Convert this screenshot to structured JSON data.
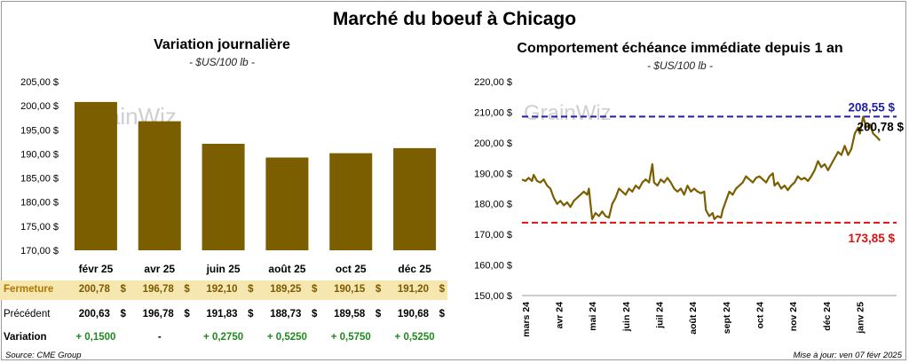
{
  "main_title": "Marché du boeuf à Chicago",
  "left": {
    "title": "Variation journalière",
    "subtitle": "- $US/100 lb -"
  },
  "right": {
    "title": "Comportement échéance immédiate depuis 1 an",
    "subtitle": "- $US/100 lb -"
  },
  "table": {
    "rows": [
      {
        "label": "Fermeture",
        "values": [
          "200,78",
          "196,78",
          "192,10",
          "189,25",
          "190,15",
          "191,20"
        ],
        "currency": "$"
      },
      {
        "label": "Précédent",
        "values": [
          "200,63",
          "196,78",
          "191,83",
          "188,73",
          "189,58",
          "190,68"
        ],
        "currency": "$"
      },
      {
        "label": "Variation",
        "values": [
          "+ 0,1500",
          "-",
          "+ 0,2750",
          "+ 0,5250",
          "+ 0,5750",
          "+ 0,5250"
        ]
      }
    ]
  },
  "footer": {
    "source": "Source: CME Group",
    "update": "Mise à jour: ven 07 févr 2025"
  },
  "colors": {
    "bar": "#7a5e00",
    "line": "#7a5e00",
    "high_line": "#1f1fa8",
    "low_line": "#e01010",
    "fermeture_bg": "#f6e6b0",
    "variation_text": "#1e8a1e"
  },
  "chart_data": [
    {
      "type": "bar",
      "title": "Variation journalière",
      "subtitle": "- $US/100 lb -",
      "categories": [
        "févr 25",
        "avr 25",
        "juin 25",
        "août 25",
        "oct 25",
        "déc 25"
      ],
      "values": [
        200.78,
        196.78,
        192.1,
        189.25,
        190.15,
        191.2
      ],
      "ylim": [
        170,
        205
      ],
      "yticks": [
        "205,00 $",
        "200,00 $",
        "195,00 $",
        "190,00 $",
        "185,00 $",
        "180,00 $",
        "175,00 $",
        "170,00 $"
      ],
      "ytick_values": [
        205,
        200,
        195,
        190,
        185,
        180,
        175,
        170
      ],
      "grid": false,
      "watermark": "GrainWiz"
    },
    {
      "type": "line",
      "title": "Comportement échéance immédiate depuis 1 an",
      "subtitle": "- $US/100 lb -",
      "x_labels": [
        "mars 24",
        "avr 24",
        "mai 24",
        "juin 24",
        "juil 24",
        "août 24",
        "sept 24",
        "oct 24",
        "nov 24",
        "déc 24",
        "janv 25"
      ],
      "ylim": [
        150,
        220
      ],
      "yticks": [
        "220,00 $",
        "210,00 $",
        "200,00 $",
        "190,00 $",
        "180,00 $",
        "170,00 $",
        "160,00 $",
        "150,00 $"
      ],
      "ytick_values": [
        220,
        210,
        200,
        190,
        180,
        170,
        160,
        150
      ],
      "x_range": [
        0,
        11.2
      ],
      "values": [
        [
          0.0,
          188
        ],
        [
          0.1,
          187.5
        ],
        [
          0.2,
          188.5
        ],
        [
          0.3,
          187.5
        ],
        [
          0.35,
          189.5
        ],
        [
          0.45,
          187.5
        ],
        [
          0.55,
          187
        ],
        [
          0.65,
          188
        ],
        [
          0.75,
          186
        ],
        [
          0.85,
          185
        ],
        [
          0.95,
          182
        ],
        [
          1.05,
          180
        ],
        [
          1.15,
          181
        ],
        [
          1.25,
          179.5
        ],
        [
          1.35,
          180.5
        ],
        [
          1.45,
          179
        ],
        [
          1.55,
          181
        ],
        [
          1.65,
          182
        ],
        [
          1.75,
          183
        ],
        [
          1.85,
          184
        ],
        [
          1.95,
          183
        ],
        [
          2.0,
          185
        ],
        [
          2.05,
          180
        ],
        [
          2.1,
          175
        ],
        [
          2.2,
          177
        ],
        [
          2.3,
          176
        ],
        [
          2.4,
          177.5
        ],
        [
          2.5,
          176
        ],
        [
          2.6,
          175.5
        ],
        [
          2.7,
          180
        ],
        [
          2.8,
          182
        ],
        [
          2.9,
          185
        ],
        [
          3.0,
          184
        ],
        [
          3.1,
          183
        ],
        [
          3.2,
          185
        ],
        [
          3.3,
          184
        ],
        [
          3.4,
          186
        ],
        [
          3.5,
          185
        ],
        [
          3.6,
          187
        ],
        [
          3.7,
          188
        ],
        [
          3.8,
          187
        ],
        [
          3.9,
          193
        ],
        [
          3.95,
          187
        ],
        [
          4.05,
          186
        ],
        [
          4.15,
          188
        ],
        [
          4.25,
          187
        ],
        [
          4.35,
          188.5
        ],
        [
          4.45,
          187
        ],
        [
          4.55,
          185
        ],
        [
          4.65,
          184
        ],
        [
          4.75,
          185
        ],
        [
          4.85,
          183
        ],
        [
          4.95,
          186
        ],
        [
          5.05,
          184
        ],
        [
          5.15,
          185
        ],
        [
          5.25,
          184
        ],
        [
          5.35,
          183.5
        ],
        [
          5.45,
          184
        ],
        [
          5.5,
          178
        ],
        [
          5.6,
          176
        ],
        [
          5.7,
          177
        ],
        [
          5.75,
          175
        ],
        [
          5.85,
          176
        ],
        [
          5.95,
          175.5
        ],
        [
          6.0,
          178
        ],
        [
          6.1,
          181
        ],
        [
          6.2,
          184
        ],
        [
          6.3,
          183
        ],
        [
          6.4,
          185
        ],
        [
          6.5,
          186
        ],
        [
          6.6,
          187
        ],
        [
          6.7,
          189
        ],
        [
          6.8,
          188
        ],
        [
          6.9,
          187
        ],
        [
          7.0,
          188.5
        ],
        [
          7.1,
          189
        ],
        [
          7.2,
          188
        ],
        [
          7.3,
          187
        ],
        [
          7.4,
          189
        ],
        [
          7.5,
          190
        ],
        [
          7.55,
          186
        ],
        [
          7.65,
          187
        ],
        [
          7.75,
          185
        ],
        [
          7.85,
          186
        ],
        [
          7.95,
          184.5
        ],
        [
          8.05,
          186
        ],
        [
          8.15,
          187
        ],
        [
          8.25,
          189
        ],
        [
          8.35,
          188
        ],
        [
          8.45,
          188.5
        ],
        [
          8.55,
          187.5
        ],
        [
          8.65,
          189
        ],
        [
          8.75,
          191
        ],
        [
          8.85,
          194
        ],
        [
          8.95,
          192
        ],
        [
          9.05,
          193
        ],
        [
          9.15,
          191
        ],
        [
          9.25,
          193
        ],
        [
          9.35,
          195
        ],
        [
          9.45,
          197
        ],
        [
          9.55,
          196
        ],
        [
          9.65,
          199
        ],
        [
          9.75,
          196
        ],
        [
          9.85,
          198
        ],
        [
          9.95,
          203
        ],
        [
          10.05,
          205
        ],
        [
          10.1,
          203
        ],
        [
          10.2,
          208.5
        ],
        [
          10.3,
          205
        ],
        [
          10.4,
          206
        ],
        [
          10.5,
          203
        ],
        [
          10.6,
          202
        ],
        [
          10.7,
          200.78
        ]
      ],
      "reference_lines": [
        {
          "value": 208.55,
          "label": "208,55 $",
          "color": "#1f1fa8"
        },
        {
          "value": 173.85,
          "label": "173,85 $",
          "color": "#e01010"
        }
      ],
      "last_label": "200,78 $",
      "grid": false,
      "watermark": "GrainWiz"
    }
  ]
}
